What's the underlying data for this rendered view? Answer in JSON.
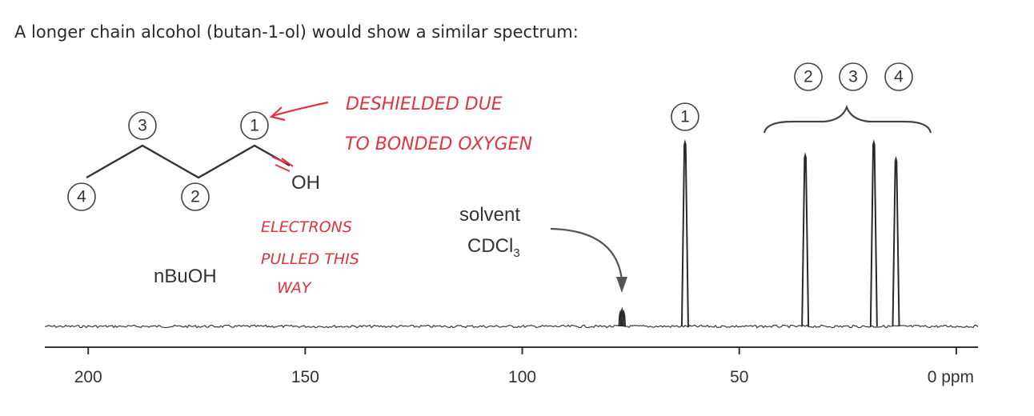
{
  "intro_text": "A longer chain alcohol (butan-1-ol) would show a similar spectrum:",
  "molecule": {
    "name_label": "nBuOH",
    "oh_label": "OH",
    "carbon_labels": [
      "3",
      "1",
      "4",
      "2"
    ]
  },
  "annotations": {
    "deshielded": [
      "DESHIELDED DUE",
      "TO BONDED OXYGEN"
    ],
    "electrons": [
      "ELECTRONS",
      "PULLED THIS",
      "WAY"
    ],
    "solvent_label": "solvent",
    "solvent_formula": "CDCl",
    "solvent_formula_sub": "3"
  },
  "colors": {
    "handwriting": "#e0343f",
    "spectrum": "#2a2a2a"
  },
  "chart_data": {
    "type": "line",
    "xlabel": "ppm",
    "x_reversed": true,
    "xlim": [
      210,
      -5
    ],
    "xticks": [
      200,
      150,
      100,
      50,
      0
    ],
    "xtick_labels": [
      "200",
      "150",
      "100",
      "50",
      "0 ppm"
    ],
    "peaks": [
      {
        "ppm": 62.5,
        "height": 1.0,
        "label": "1"
      },
      {
        "ppm": 34.8,
        "height": 0.93,
        "label": "2"
      },
      {
        "ppm": 19.0,
        "height": 1.0,
        "label": "3"
      },
      {
        "ppm": 13.9,
        "height": 0.91,
        "label": "4"
      }
    ],
    "solvent_peaks": [
      {
        "ppm": 77.4,
        "height": 0.075
      },
      {
        "ppm": 77.0,
        "height": 0.09
      },
      {
        "ppm": 76.6,
        "height": 0.075
      }
    ],
    "group_labels": [
      "2",
      "3",
      "4"
    ]
  }
}
